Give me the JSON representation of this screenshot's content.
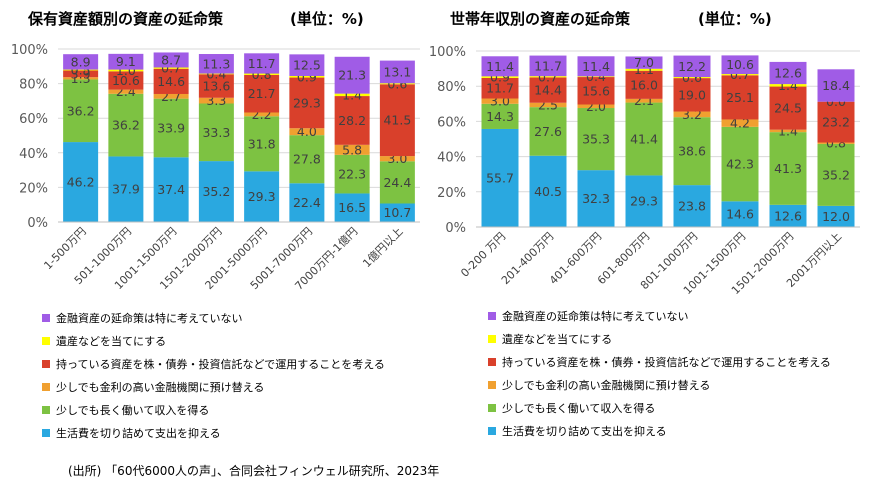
{
  "source": "(出所) 「60代6000人の声」、合同会社フィンウェル研究所、2023年",
  "legend": [
    {
      "label": "金融資産の延命策は特に考えていない",
      "color": "#a05ce6"
    },
    {
      "label": "遺産などを当てにする",
      "color": "#ffff00"
    },
    {
      "label": "持っている資産を株・債券・投資信託などで運用することを考える",
      "color": "#d9402b"
    },
    {
      "label": "少しでも金利の高い金融機関に預け替える",
      "color": "#f0a030"
    },
    {
      "label": "少しでも長く働いて収入を得る",
      "color": "#7dc242"
    },
    {
      "label": "生活費を切り詰めて支出を抑える",
      "color": "#2aa8e0"
    }
  ],
  "chart_data": [
    {
      "type": "bar",
      "stacked": true,
      "title": "保有資産額別の資産の延命策",
      "unit_label": "(単位：%)",
      "categories": [
        "1-500万円",
        "501-1000万円",
        "1001-1500万円",
        "1501-2000万円",
        "2001-5000万円",
        "5001-7000万円",
        "7000万円-1億円",
        "1億円以上"
      ],
      "yticks": [
        "0%",
        "20%",
        "40%",
        "60%",
        "80%",
        "100%"
      ],
      "ylim": [
        0,
        100
      ],
      "series": [
        {
          "name": "生活費を切り詰めて支出を抑える",
          "color": "#2aa8e0",
          "values": [
            46.2,
            37.9,
            37.4,
            35.2,
            29.3,
            22.4,
            16.5,
            10.7
          ]
        },
        {
          "name": "少しでも長く働いて収入を得る",
          "color": "#7dc242",
          "values": [
            36.2,
            36.2,
            33.9,
            33.3,
            31.8,
            27.8,
            22.3,
            24.4
          ]
        },
        {
          "name": "少しでも金利の高い金融機関に預け替える",
          "color": "#f0a030",
          "values": [
            1.3,
            2.4,
            2.7,
            3.3,
            2.2,
            4.0,
            5.8,
            3.0
          ]
        },
        {
          "name": "持っている資産を株・債券・投資信託などで運用することを考える",
          "color": "#d9402b",
          "values": [
            3.9,
            10.6,
            14.6,
            13.6,
            21.7,
            29.3,
            28.2,
            41.5
          ]
        },
        {
          "name": "遺産などを当てにする",
          "color": "#ffff00",
          "values": [
            0.5,
            1.0,
            0.7,
            0.4,
            0.8,
            0.9,
            1.4,
            0.6
          ]
        },
        {
          "name": "金融資産の延命策は特に考えていない",
          "color": "#a05ce6",
          "values": [
            8.9,
            9.1,
            8.7,
            11.3,
            11.7,
            12.5,
            21.3,
            13.1
          ]
        }
      ]
    },
    {
      "type": "bar",
      "stacked": true,
      "title": "世帯年収別の資産の延命策",
      "unit_label": "(単位：%)",
      "categories": [
        "0-200 万円",
        "201-400万円",
        "401-600万円",
        "601-800万円",
        "801-1000万円",
        "1001-1500万円",
        "1501-2000万円",
        "2001万円以上"
      ],
      "yticks": [
        "0%",
        "20%",
        "40%",
        "60%",
        "80%",
        "100%"
      ],
      "ylim": [
        0,
        100
      ],
      "series": [
        {
          "name": "生活費を切り詰めて支出を抑える",
          "color": "#2aa8e0",
          "values": [
            55.7,
            40.5,
            32.3,
            29.3,
            23.8,
            14.6,
            12.6,
            12.0
          ]
        },
        {
          "name": "少しでも長く働いて収入を得る",
          "color": "#7dc242",
          "values": [
            14.3,
            27.6,
            35.3,
            41.4,
            38.6,
            42.3,
            41.3,
            35.2
          ]
        },
        {
          "name": "少しでも金利の高い金融機関に預け替える",
          "color": "#f0a030",
          "values": [
            3.0,
            2.5,
            2.0,
            2.1,
            3.2,
            4.2,
            1.4,
            0.8
          ]
        },
        {
          "name": "持っている資産を株・債券・投資信託などで運用することを考える",
          "color": "#d9402b",
          "values": [
            11.7,
            14.4,
            15.6,
            16.0,
            19.0,
            25.1,
            24.5,
            23.2
          ]
        },
        {
          "name": "遺産などを当てにする",
          "color": "#ffff00",
          "values": [
            0.9,
            0.7,
            0.4,
            1.1,
            0.6,
            0.7,
            1.4,
            0.0
          ]
        },
        {
          "name": "金融資産の延命策は特に考えていない",
          "color": "#a05ce6",
          "values": [
            11.4,
            11.7,
            11.4,
            7.0,
            12.2,
            10.6,
            12.6,
            18.4
          ]
        }
      ]
    }
  ]
}
